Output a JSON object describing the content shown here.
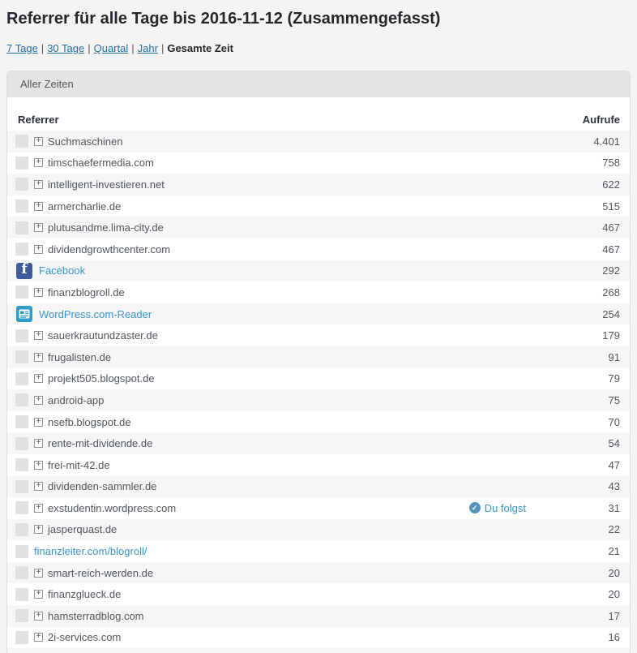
{
  "page": {
    "title": "Referrer für alle Tage bis 2016-11-12 (Zusammengefasst)",
    "nav": {
      "separator": "|",
      "links": [
        {
          "label": "7 Tage"
        },
        {
          "label": "30 Tage"
        },
        {
          "label": "Quartal"
        },
        {
          "label": "Jahr"
        }
      ],
      "active": "Gesamte Zeit"
    },
    "panel": {
      "header": "Aller Zeiten",
      "table": {
        "columns": {
          "referrer": "Referrer",
          "views": "Aufrufe"
        },
        "rows": [
          {
            "label": "Suchmaschinen",
            "views": "4.401",
            "expander": true
          },
          {
            "label": "timschaefermedia.com",
            "views": "758",
            "expander": true
          },
          {
            "label": "intelligent-investieren.net",
            "views": "622",
            "expander": true
          },
          {
            "label": "armercharlie.de",
            "views": "515",
            "expander": true
          },
          {
            "label": "plutusandme.lima-city.de",
            "views": "467",
            "expander": true
          },
          {
            "label": "dividendgrowthcenter.com",
            "views": "467",
            "expander": true
          },
          {
            "label": "Facebook",
            "views": "292",
            "link": true,
            "icon": "facebook"
          },
          {
            "label": "finanzblogroll.de",
            "views": "268",
            "expander": true
          },
          {
            "label": "WordPress.com-Reader",
            "views": "254",
            "link": true,
            "icon": "wordpress-reader"
          },
          {
            "label": "sauerkrautundzaster.de",
            "views": "179",
            "expander": true
          },
          {
            "label": "frugalisten.de",
            "views": "91",
            "expander": true
          },
          {
            "label": "projekt505.blogspot.de",
            "views": "79",
            "expander": true
          },
          {
            "label": "android-app",
            "views": "75",
            "expander": true
          },
          {
            "label": "nsefb.blogspot.de",
            "views": "70",
            "expander": true
          },
          {
            "label": "rente-mit-dividende.de",
            "views": "54",
            "expander": true
          },
          {
            "label": "frei-mit-42.de",
            "views": "47",
            "expander": true
          },
          {
            "label": "dividenden-sammler.de",
            "views": "43",
            "expander": true
          },
          {
            "label": "exstudentin.wordpress.com",
            "views": "31",
            "expander": true,
            "badge": "Du folgst"
          },
          {
            "label": "jasperquast.de",
            "views": "22",
            "expander": true
          },
          {
            "label": "finanzleiter.com/blogroll/",
            "views": "21",
            "link": true
          },
          {
            "label": "smart-reich-werden.de",
            "views": "20",
            "expander": true
          },
          {
            "label": "finanzglueck.de",
            "views": "20",
            "expander": true
          },
          {
            "label": "hamsterradblog.com",
            "views": "17",
            "expander": true
          },
          {
            "label": "2i-services.com",
            "views": "16",
            "expander": true
          }
        ]
      }
    }
  },
  "icons": {
    "expand_glyph": "+",
    "facebook_glyph": "f",
    "check_glyph": "✓"
  },
  "colors": {
    "link_blue": "#3a97c8",
    "nav_link_blue": "#2271a1",
    "facebook_blue": "#3e5b9a",
    "reader_blue": "#2e9cc7",
    "header_bar_gray": "#e4e4e4",
    "stripe_gray": "#f6f6f6"
  }
}
